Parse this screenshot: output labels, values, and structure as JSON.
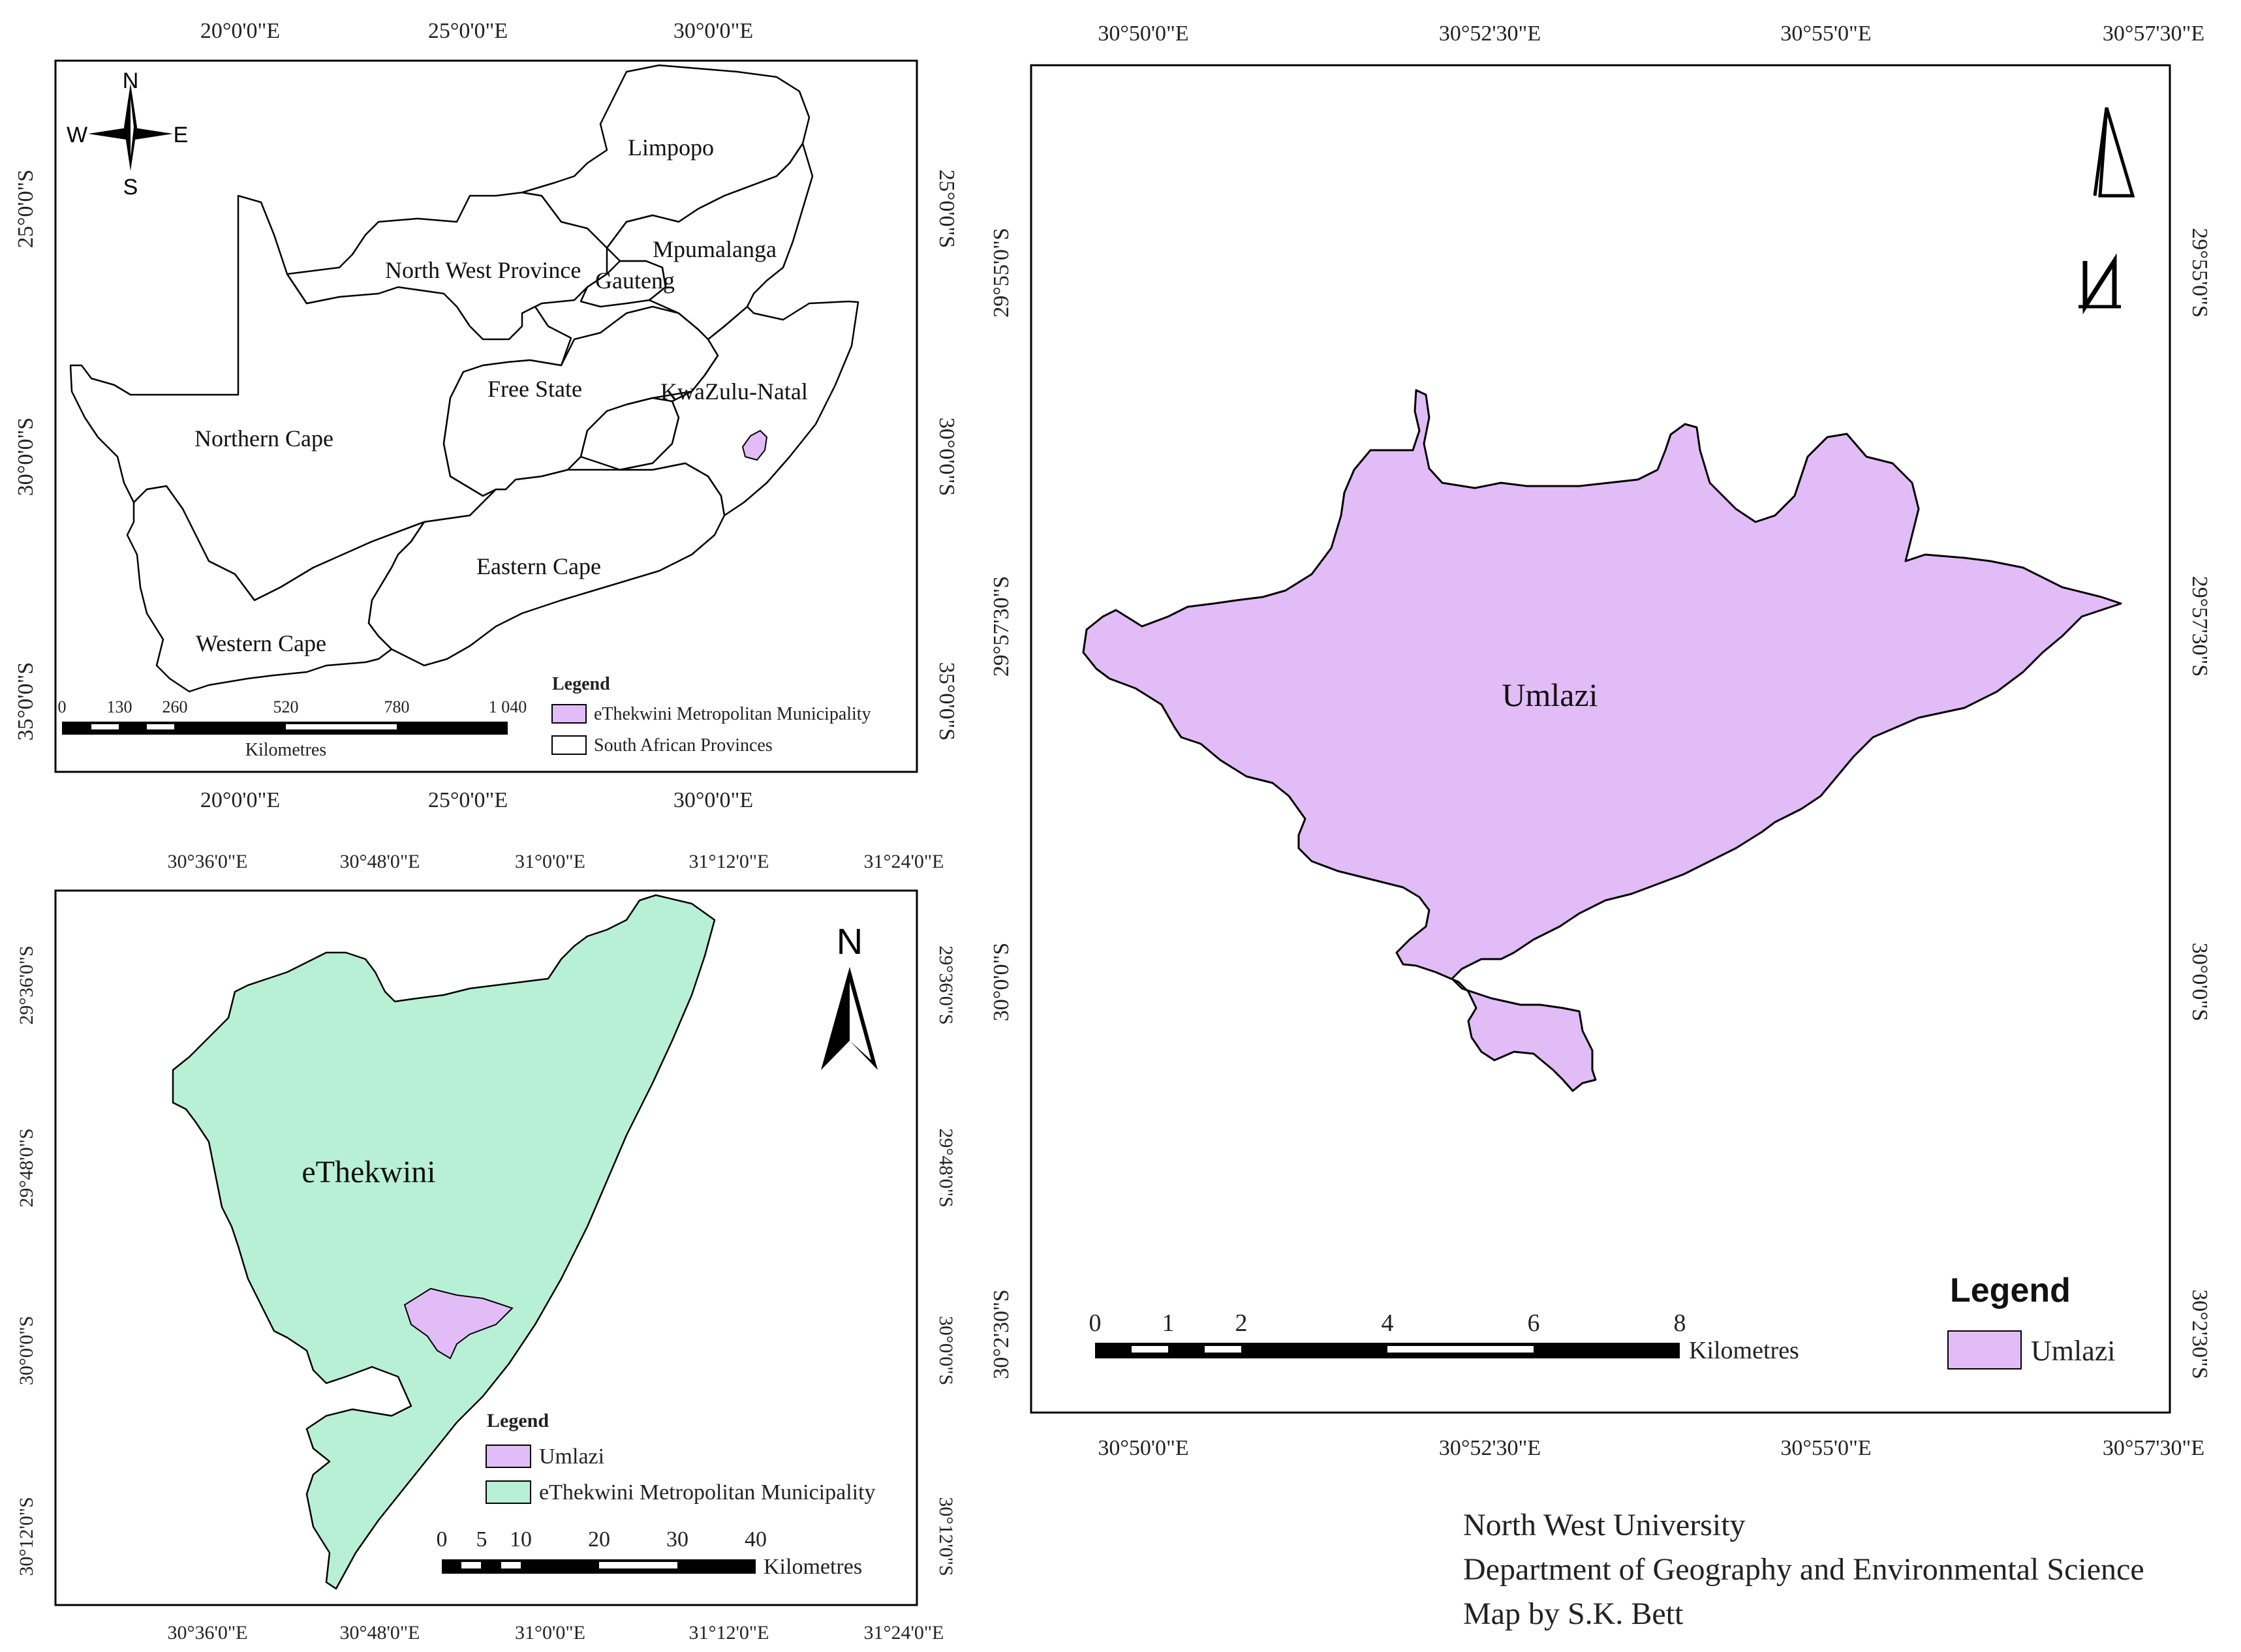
{
  "map_sa": {
    "top_ticks": [
      "20°0'0\"E",
      "25°0'0\"E",
      "30°0'0\"E"
    ],
    "bottom_ticks": [
      "20°0'0\"E",
      "25°0'0\"E",
      "30°0'0\"E"
    ],
    "left_ticks": [
      "25°0'0\"S",
      "30°0'0\"S",
      "35°0'0\"S"
    ],
    "right_ticks": [
      "25°0'0\"S",
      "30°0'0\"S",
      "35°0'0\"S"
    ],
    "compass": {
      "n": "N",
      "s": "S",
      "e": "E",
      "w": "W"
    },
    "provinces": [
      "Limpopo",
      "Mpumalanga",
      "North West Province",
      "Gauteng",
      "Free State",
      "KwaZulu-Natal",
      "Northern Cape",
      "Eastern Cape",
      "Western Cape"
    ],
    "scale_ticks": [
      "0",
      "130",
      "260",
      "520",
      "780",
      "1 040"
    ],
    "scale_unit": "Kilometres",
    "legend_title": "Legend",
    "legend_items": [
      "eThekwini Metropolitan Municipality",
      "South African Provinces"
    ],
    "colors": {
      "municipality": "#e2bcf7",
      "province": "#ffffff"
    }
  },
  "map_ethekwini": {
    "top_ticks": [
      "30°36'0\"E",
      "30°48'0\"E",
      "31°0'0\"E",
      "31°12'0\"E",
      "31°24'0\"E"
    ],
    "bottom_ticks": [
      "30°36'0\"E",
      "30°48'0\"E",
      "31°0'0\"E",
      "31°12'0\"E",
      "31°24'0\"E"
    ],
    "left_ticks": [
      "29°36'0\"S",
      "29°48'0\"S",
      "30°0'0\"S",
      "30°12'0\"S"
    ],
    "right_ticks": [
      "29°36'0\"S",
      "29°48'0\"S",
      "30°0'0\"S",
      "30°12'0\"S"
    ],
    "north": "N",
    "area_label": "eThekwini",
    "legend_title": "Legend",
    "legend_items": [
      "Umlazi",
      "eThekwini Metropolitan Municipality"
    ],
    "scale_ticks": [
      "0",
      "5",
      "10",
      "20",
      "30",
      "40"
    ],
    "scale_unit": "Kilometres",
    "colors": {
      "municipality": "#b8f0d6",
      "umlazi": "#e2bcf7"
    }
  },
  "map_umlazi": {
    "top_ticks": [
      "30°50'0\"E",
      "30°52'30\"E",
      "30°55'0\"E",
      "30°57'30\"E"
    ],
    "bottom_ticks": [
      "30°50'0\"E",
      "30°52'30\"E",
      "30°55'0\"E",
      "30°57'30\"E"
    ],
    "left_ticks": [
      "29°55'0\"S",
      "29°57'30\"S",
      "30°0'0\"S",
      "30°2'30\"S"
    ],
    "right_ticks": [
      "29°55'0\"S",
      "29°57'30\"S",
      "30°0'0\"S",
      "30°2'30\"S"
    ],
    "area_label": "Umlazi",
    "legend_title": "Legend",
    "legend_items": [
      "Umlazi"
    ],
    "scale_ticks": [
      "0",
      "1",
      "2",
      "4",
      "6",
      "8"
    ],
    "scale_unit": "Kilometres",
    "colors": {
      "umlazi": "#e2bcf7"
    }
  },
  "credits": {
    "line1": "North West University",
    "line2": "Department of Geography and Environmental Science",
    "line3": "Map by S.K. Bett"
  }
}
